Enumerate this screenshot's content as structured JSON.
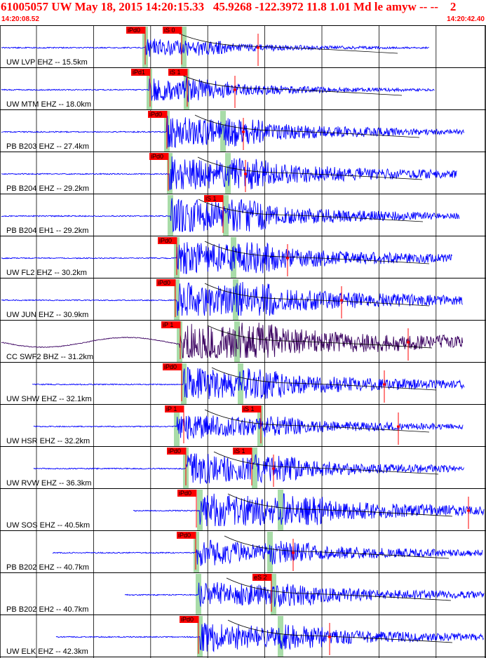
{
  "header": {
    "title": "61005057 UW May 18, 2015 14:20:15.33   45.9268 -122.3972 11.8 1.01 Md le amyw -- --    2",
    "start_time": "14:20:08.52",
    "end_time": "14:20:42.40"
  },
  "colors": {
    "trace": "#0000ff",
    "trace_alt": "#3a0060",
    "pick_box": "#ff0000",
    "pick_band": "#a8dca8",
    "header_text": "#ff0000"
  },
  "traces": [
    {
      "label": "UW LVP EHZ -- 15.5km",
      "picks": [
        {
          "text": "iPd0"
        },
        {
          "text": "iS 0"
        }
      ]
    },
    {
      "label": "UW MTM EHZ -- 18.0km",
      "picks": [
        {
          "text": "iPd1"
        },
        {
          "text": "iS 1"
        }
      ]
    },
    {
      "label": "PB B203 EHZ -- 27.4km",
      "picks": [
        {
          "text": "iPd0"
        }
      ]
    },
    {
      "label": "PB B204 EHZ -- 29.2km",
      "picks": [
        {
          "text": "iPd0"
        }
      ]
    },
    {
      "label": "PB B204 EH1 -- 29.2km",
      "picks": [
        {
          "text": "iS 1"
        }
      ]
    },
    {
      "label": "UW FL2 EHZ -- 30.2km",
      "picks": [
        {
          "text": "iPd0"
        }
      ]
    },
    {
      "label": "UW JUN EHZ -- 30.9km",
      "picks": [
        {
          "text": "iPd0"
        }
      ]
    },
    {
      "label": "CC SWF2 BHZ -- 31.2km",
      "picks": [
        {
          "text": "iP 1"
        }
      ]
    },
    {
      "label": "UW SHW EHZ -- 32.1km",
      "picks": [
        {
          "text": "iPd0"
        }
      ]
    },
    {
      "label": "UW HSR EHZ -- 32.2km",
      "picks": [
        {
          "text": "iP 1"
        },
        {
          "text": "iS 1"
        }
      ]
    },
    {
      "label": "UW RVW EHZ -- 36.3km",
      "picks": [
        {
          "text": "iPd0"
        },
        {
          "text": "iS 1"
        }
      ]
    },
    {
      "label": "UW SOS EHZ -- 40.5km",
      "picks": [
        {
          "text": "iPd0"
        }
      ]
    },
    {
      "label": "PB B202 EHZ -- 40.7km",
      "picks": [
        {
          "text": "iPd0"
        }
      ]
    },
    {
      "label": "PB B202 EH2 -- 40.7km",
      "picks": [
        {
          "text": "eS 2"
        }
      ]
    },
    {
      "label": "UW ELK EHZ -- 42.3km",
      "picks": [
        {
          "text": "iPd0"
        }
      ]
    }
  ]
}
